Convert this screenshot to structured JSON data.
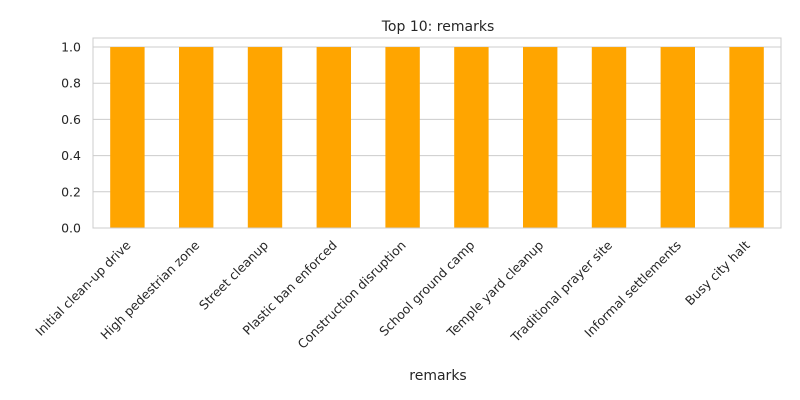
{
  "chart_data": {
    "type": "bar",
    "title": "Top 10: remarks",
    "xlabel": "remarks",
    "ylabel": "",
    "categories": [
      "Initial clean-up drive",
      "High pedestrian zone",
      "Street cleanup",
      "Plastic ban enforced",
      "Construction disruption",
      "School ground camp",
      "Temple yard cleanup",
      "Traditional prayer site",
      "Informal settlements",
      "Busy city halt"
    ],
    "values": [
      1,
      1,
      1,
      1,
      1,
      1,
      1,
      1,
      1,
      1
    ],
    "ylim": [
      0,
      1.05
    ],
    "yticks": [
      "0.0",
      "0.2",
      "0.4",
      "0.6",
      "0.8",
      "1.0"
    ],
    "grid": true,
    "bar_color": "#FFA500",
    "grid_color": "#cccccc"
  }
}
